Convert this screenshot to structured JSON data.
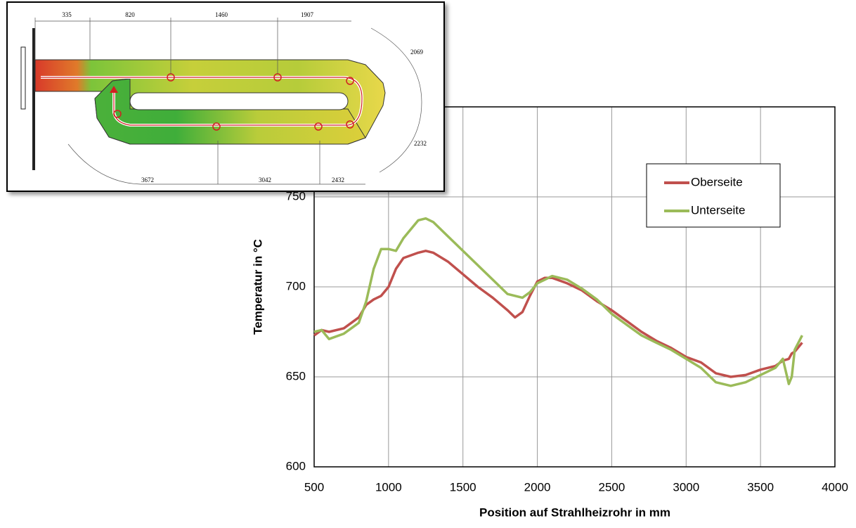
{
  "chart_data": {
    "type": "line",
    "x_label": "Position auf Strahlheizrohr in mm",
    "y_label": "Temperatur in °C",
    "x": [
      500,
      550,
      600,
      700,
      800,
      850,
      900,
      950,
      1000,
      1050,
      1100,
      1200,
      1250,
      1300,
      1400,
      1500,
      1600,
      1700,
      1800,
      1850,
      1900,
      1950,
      2000,
      2050,
      2100,
      2200,
      2300,
      2400,
      2500,
      2600,
      2700,
      2800,
      2900,
      3000,
      3100,
      3200,
      3300,
      3400,
      3500,
      3600,
      3650,
      3690,
      3710,
      3730,
      3780
    ],
    "series": [
      {
        "name": "Oberseite",
        "color": "#c0504d",
        "values": [
          673,
          676,
          675,
          677,
          683,
          690,
          693,
          695,
          700,
          710,
          716,
          719,
          720,
          719,
          714,
          707,
          700,
          694,
          687,
          683,
          686,
          695,
          703,
          705,
          705,
          702,
          698,
          692,
          687,
          681,
          675,
          670,
          666,
          661,
          658,
          652,
          650,
          651,
          654,
          656,
          659,
          660,
          663,
          664,
          669
        ]
      },
      {
        "name": "Unterseite",
        "color": "#9bbb59",
        "values": [
          675,
          676,
          671,
          674,
          680,
          692,
          710,
          721,
          721,
          720,
          727,
          737,
          738,
          736,
          728,
          720,
          712,
          704,
          696,
          695,
          694,
          697,
          702,
          704,
          706,
          704,
          699,
          693,
          685,
          679,
          673,
          669,
          665,
          660,
          655,
          647,
          645,
          647,
          651,
          655,
          660,
          646,
          650,
          665,
          673
        ]
      }
    ],
    "xlim": [
      500,
      4000
    ],
    "xticks": [
      500,
      1000,
      1500,
      2000,
      2500,
      3000,
      3500,
      4000
    ],
    "ylim": [
      600,
      800
    ],
    "yticks": [
      600,
      650,
      700,
      750
    ],
    "grid": true,
    "legend": "top-right"
  },
  "inset": {
    "dimensions": [
      "335",
      "820",
      "1460",
      "1907",
      "2069",
      "2232",
      "3672",
      "3042",
      "2432"
    ]
  }
}
